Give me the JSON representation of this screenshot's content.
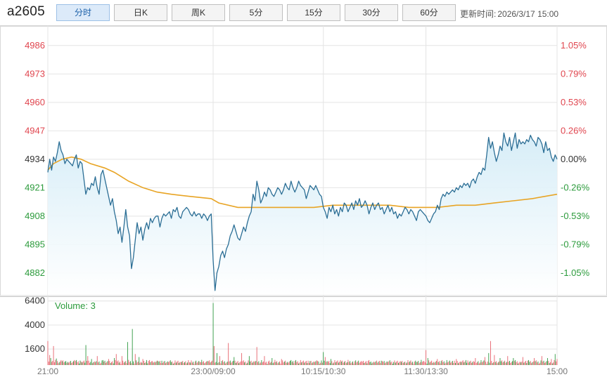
{
  "header": {
    "symbol": "a2605",
    "tabs": [
      {
        "label": "分时",
        "active": true
      },
      {
        "label": "日K",
        "active": false
      },
      {
        "label": "周K",
        "active": false
      },
      {
        "label": "5分",
        "active": false
      },
      {
        "label": "15分",
        "active": false
      },
      {
        "label": "30分",
        "active": false
      },
      {
        "label": "60分",
        "active": false
      }
    ],
    "update_label": "更新时间:",
    "update_time": "2026/3/17 15:00"
  },
  "colors": {
    "price_line": "#2b6e95",
    "avg_line": "#e8a424",
    "up": "#e0464f",
    "down": "#2c9b3c",
    "fill": "#e9f5fb",
    "grid": "#e4e4e4",
    "volume_up": "#e86a73",
    "volume_down": "#3b9f4c"
  },
  "chart_data": {
    "type": "line",
    "price_axis": {
      "ticks": [
        4986,
        4973,
        4960,
        4947,
        4934,
        4921,
        4908,
        4895,
        4882
      ],
      "ylim": [
        4872,
        4993
      ],
      "reference": 4934
    },
    "percent_axis": {
      "ticks": [
        "1.05%",
        "0.79%",
        "0.53%",
        "0.26%",
        "0.00%",
        "-0.26%",
        "-0.53%",
        "-0.79%",
        "-1.05%"
      ]
    },
    "time_axis": {
      "labels": [
        "21:00",
        "23:00/09:00",
        "10:15/10:30",
        "11:30/13:30",
        "15:00"
      ]
    },
    "price_series": [
      [
        0,
        4928
      ],
      [
        2,
        4934
      ],
      [
        4,
        4929
      ],
      [
        6,
        4935
      ],
      [
        8,
        4933
      ],
      [
        10,
        4937
      ],
      [
        12,
        4942
      ],
      [
        14,
        4938
      ],
      [
        16,
        4936
      ],
      [
        18,
        4932
      ],
      [
        20,
        4934
      ],
      [
        22,
        4933
      ],
      [
        24,
        4932
      ],
      [
        26,
        4931
      ],
      [
        28,
        4934
      ],
      [
        30,
        4936
      ],
      [
        32,
        4930
      ],
      [
        34,
        4933
      ],
      [
        36,
        4932
      ],
      [
        38,
        4925
      ],
      [
        40,
        4918
      ],
      [
        42,
        4921
      ],
      [
        44,
        4920
      ],
      [
        46,
        4923
      ],
      [
        48,
        4922
      ],
      [
        50,
        4926
      ],
      [
        52,
        4921
      ],
      [
        54,
        4918
      ],
      [
        56,
        4927
      ],
      [
        58,
        4929
      ],
      [
        60,
        4925
      ],
      [
        62,
        4921
      ],
      [
        64,
        4917
      ],
      [
        66,
        4913
      ],
      [
        68,
        4916
      ],
      [
        70,
        4910
      ],
      [
        72,
        4906
      ],
      [
        74,
        4900
      ],
      [
        76,
        4903
      ],
      [
        78,
        4896
      ],
      [
        80,
        4903
      ],
      [
        82,
        4911
      ],
      [
        84,
        4903
      ],
      [
        86,
        4899
      ],
      [
        88,
        4884
      ],
      [
        90,
        4889
      ],
      [
        92,
        4897
      ],
      [
        94,
        4905
      ],
      [
        96,
        4900
      ],
      [
        98,
        4903
      ],
      [
        100,
        4897
      ],
      [
        102,
        4902
      ],
      [
        104,
        4905
      ],
      [
        106,
        4902
      ],
      [
        108,
        4907
      ],
      [
        110,
        4905
      ],
      [
        112,
        4907
      ],
      [
        114,
        4908
      ],
      [
        116,
        4908
      ],
      [
        118,
        4903
      ],
      [
        120,
        4907
      ],
      [
        122,
        4909
      ],
      [
        124,
        4908
      ],
      [
        126,
        4909
      ],
      [
        128,
        4910
      ],
      [
        130,
        4907
      ],
      [
        132,
        4911
      ],
      [
        134,
        4910
      ],
      [
        136,
        4912
      ],
      [
        138,
        4908
      ],
      [
        140,
        4907
      ],
      [
        142,
        4910
      ],
      [
        144,
        4911
      ],
      [
        146,
        4912
      ],
      [
        148,
        4911
      ],
      [
        150,
        4909
      ],
      [
        152,
        4908
      ],
      [
        154,
        4910
      ],
      [
        156,
        4908
      ],
      [
        158,
        4909
      ],
      [
        160,
        4909
      ],
      [
        162,
        4907
      ],
      [
        164,
        4909
      ],
      [
        166,
        4908
      ],
      [
        168,
        4906
      ],
      [
        170,
        4908
      ],
      [
        172,
        4909
      ],
      [
        174,
        4888
      ],
      [
        176,
        4874
      ],
      [
        178,
        4882
      ],
      [
        180,
        4885
      ],
      [
        182,
        4890
      ],
      [
        184,
        4892
      ],
      [
        186,
        4889
      ],
      [
        188,
        4893
      ],
      [
        190,
        4895
      ],
      [
        192,
        4899
      ],
      [
        194,
        4901
      ],
      [
        196,
        4904
      ],
      [
        198,
        4901
      ],
      [
        200,
        4898
      ],
      [
        202,
        4897
      ],
      [
        204,
        4900
      ],
      [
        206,
        4903
      ],
      [
        208,
        4901
      ],
      [
        210,
        4905
      ],
      [
        212,
        4908
      ],
      [
        214,
        4910
      ],
      [
        216,
        4918
      ],
      [
        218,
        4915
      ],
      [
        220,
        4924
      ],
      [
        222,
        4920
      ],
      [
        224,
        4914
      ],
      [
        226,
        4916
      ],
      [
        228,
        4919
      ],
      [
        230,
        4917
      ],
      [
        232,
        4921
      ],
      [
        234,
        4920
      ],
      [
        236,
        4918
      ],
      [
        238,
        4917
      ],
      [
        240,
        4919
      ],
      [
        242,
        4921
      ],
      [
        244,
        4920
      ],
      [
        246,
        4918
      ],
      [
        248,
        4920
      ],
      [
        250,
        4923
      ],
      [
        252,
        4921
      ],
      [
        254,
        4920
      ],
      [
        256,
        4924
      ],
      [
        258,
        4921
      ],
      [
        260,
        4919
      ],
      [
        262,
        4921
      ],
      [
        264,
        4924
      ],
      [
        266,
        4922
      ],
      [
        268,
        4921
      ],
      [
        270,
        4920
      ],
      [
        272,
        4916
      ],
      [
        274,
        4919
      ],
      [
        276,
        4922
      ],
      [
        278,
        4921
      ],
      [
        280,
        4920
      ],
      [
        282,
        4922
      ],
      [
        284,
        4920
      ],
      [
        286,
        4918
      ],
      [
        288,
        4917
      ],
      [
        290,
        4912
      ],
      [
        292,
        4910
      ],
      [
        294,
        4907
      ],
      [
        296,
        4912
      ],
      [
        298,
        4910
      ],
      [
        300,
        4913
      ],
      [
        302,
        4909
      ],
      [
        304,
        4911
      ],
      [
        306,
        4908
      ],
      [
        308,
        4912
      ],
      [
        310,
        4910
      ],
      [
        312,
        4914
      ],
      [
        314,
        4913
      ],
      [
        316,
        4910
      ],
      [
        318,
        4912
      ],
      [
        320,
        4914
      ],
      [
        322,
        4911
      ],
      [
        324,
        4915
      ],
      [
        326,
        4913
      ],
      [
        328,
        4916
      ],
      [
        330,
        4912
      ],
      [
        332,
        4913
      ],
      [
        334,
        4915
      ],
      [
        336,
        4913
      ],
      [
        338,
        4909
      ],
      [
        340,
        4912
      ],
      [
        342,
        4914
      ],
      [
        344,
        4911
      ],
      [
        346,
        4913
      ],
      [
        348,
        4914
      ],
      [
        350,
        4911
      ],
      [
        352,
        4912
      ],
      [
        354,
        4909
      ],
      [
        356,
        4911
      ],
      [
        358,
        4913
      ],
      [
        360,
        4910
      ],
      [
        362,
        4912
      ],
      [
        364,
        4909
      ],
      [
        366,
        4910
      ],
      [
        368,
        4907
      ],
      [
        370,
        4909
      ],
      [
        372,
        4908
      ],
      [
        374,
        4910
      ],
      [
        376,
        4912
      ],
      [
        378,
        4911
      ],
      [
        380,
        4909
      ],
      [
        382,
        4911
      ],
      [
        384,
        4910
      ],
      [
        386,
        4908
      ],
      [
        388,
        4906
      ],
      [
        390,
        4910
      ],
      [
        392,
        4911
      ],
      [
        394,
        4910
      ],
      [
        396,
        4909
      ],
      [
        398,
        4908
      ],
      [
        400,
        4906
      ],
      [
        402,
        4905
      ],
      [
        404,
        4907
      ],
      [
        406,
        4909
      ],
      [
        408,
        4910
      ],
      [
        410,
        4913
      ],
      [
        412,
        4911
      ],
      [
        414,
        4916
      ],
      [
        416,
        4918
      ],
      [
        418,
        4917
      ],
      [
        420,
        4919
      ],
      [
        422,
        4918
      ],
      [
        424,
        4919
      ],
      [
        426,
        4920
      ],
      [
        428,
        4919
      ],
      [
        430,
        4921
      ],
      [
        432,
        4920
      ],
      [
        434,
        4922
      ],
      [
        436,
        4921
      ],
      [
        438,
        4923
      ],
      [
        440,
        4922
      ],
      [
        442,
        4923
      ],
      [
        444,
        4921
      ],
      [
        446,
        4924
      ],
      [
        448,
        4925
      ],
      [
        450,
        4923
      ],
      [
        452,
        4926
      ],
      [
        454,
        4928
      ],
      [
        456,
        4927
      ],
      [
        458,
        4930
      ],
      [
        460,
        4929
      ],
      [
        462,
        4936
      ],
      [
        464,
        4944
      ],
      [
        466,
        4939
      ],
      [
        468,
        4942
      ],
      [
        470,
        4937
      ],
      [
        472,
        4933
      ],
      [
        474,
        4936
      ],
      [
        476,
        4940
      ],
      [
        478,
        4938
      ],
      [
        480,
        4946
      ],
      [
        482,
        4942
      ],
      [
        484,
        4940
      ],
      [
        486,
        4944
      ],
      [
        488,
        4938
      ],
      [
        490,
        4942
      ],
      [
        492,
        4946
      ],
      [
        494,
        4939
      ],
      [
        496,
        4943
      ],
      [
        498,
        4941
      ],
      [
        500,
        4942
      ],
      [
        502,
        4941
      ],
      [
        504,
        4943
      ],
      [
        506,
        4942
      ],
      [
        508,
        4945
      ],
      [
        510,
        4943
      ],
      [
        512,
        4942
      ],
      [
        514,
        4940
      ],
      [
        516,
        4944
      ],
      [
        518,
        4943
      ],
      [
        520,
        4941
      ],
      [
        522,
        4937
      ],
      [
        524,
        4942
      ],
      [
        526,
        4938
      ],
      [
        528,
        4939
      ],
      [
        530,
        4935
      ],
      [
        532,
        4933
      ],
      [
        534,
        4936
      ],
      [
        536,
        4934
      ]
    ],
    "avg_series": [
      [
        0,
        4929
      ],
      [
        6,
        4932
      ],
      [
        15,
        4934
      ],
      [
        25,
        4935
      ],
      [
        35,
        4934
      ],
      [
        45,
        4932
      ],
      [
        60,
        4930
      ],
      [
        70,
        4928
      ],
      [
        85,
        4924
      ],
      [
        100,
        4921
      ],
      [
        115,
        4919
      ],
      [
        130,
        4918
      ],
      [
        150,
        4917
      ],
      [
        172,
        4916
      ],
      [
        180,
        4914
      ],
      [
        200,
        4912
      ],
      [
        220,
        4912
      ],
      [
        240,
        4912
      ],
      [
        260,
        4912
      ],
      [
        280,
        4912
      ],
      [
        300,
        4913
      ],
      [
        320,
        4913
      ],
      [
        340,
        4913
      ],
      [
        360,
        4913
      ],
      [
        380,
        4912
      ],
      [
        396,
        4912
      ],
      [
        410,
        4912
      ],
      [
        430,
        4913
      ],
      [
        450,
        4913
      ],
      [
        470,
        4914
      ],
      [
        490,
        4915
      ],
      [
        510,
        4916
      ],
      [
        536,
        4918
      ]
    ],
    "volume_axis": {
      "ticks": [
        6400,
        4000,
        1600
      ],
      "ylim": [
        0,
        6800
      ]
    },
    "volume_label": "Volume: 3",
    "volume_highlights": [
      [
        0,
        2400,
        "up"
      ],
      [
        2,
        1000,
        "up"
      ],
      [
        3,
        700,
        "down"
      ],
      [
        6,
        1900,
        "up"
      ],
      [
        9,
        650,
        "down"
      ],
      [
        14,
        500,
        "up"
      ],
      [
        19,
        400,
        "down"
      ],
      [
        28,
        500,
        "up"
      ],
      [
        34,
        450,
        "down"
      ],
      [
        40,
        2000,
        "down"
      ],
      [
        42,
        900,
        "up"
      ],
      [
        46,
        600,
        "down"
      ],
      [
        52,
        900,
        "up"
      ],
      [
        58,
        500,
        "down"
      ],
      [
        64,
        600,
        "up"
      ],
      [
        70,
        700,
        "down"
      ],
      [
        72,
        1100,
        "up"
      ],
      [
        78,
        900,
        "up"
      ],
      [
        84,
        2300,
        "down"
      ],
      [
        89,
        3600,
        "down"
      ],
      [
        92,
        1100,
        "up"
      ],
      [
        96,
        800,
        "down"
      ],
      [
        100,
        600,
        "up"
      ],
      [
        104,
        500,
        "down"
      ],
      [
        110,
        400,
        "up"
      ],
      [
        116,
        400,
        "down"
      ],
      [
        122,
        350,
        "up"
      ],
      [
        130,
        300,
        "down"
      ],
      [
        140,
        300,
        "up"
      ],
      [
        150,
        250,
        "down"
      ],
      [
        160,
        300,
        "up"
      ],
      [
        168,
        400,
        "down"
      ],
      [
        174,
        6200,
        "down"
      ],
      [
        175,
        1900,
        "up"
      ],
      [
        178,
        1200,
        "down"
      ],
      [
        181,
        900,
        "up"
      ],
      [
        190,
        2200,
        "up"
      ],
      [
        196,
        800,
        "down"
      ],
      [
        204,
        1200,
        "up"
      ],
      [
        212,
        900,
        "down"
      ],
      [
        220,
        1800,
        "up"
      ],
      [
        228,
        900,
        "up"
      ],
      [
        236,
        700,
        "down"
      ],
      [
        246,
        600,
        "up"
      ],
      [
        256,
        500,
        "down"
      ],
      [
        266,
        500,
        "up"
      ],
      [
        276,
        400,
        "down"
      ],
      [
        284,
        400,
        "up"
      ],
      [
        290,
        1300,
        "down"
      ],
      [
        292,
        800,
        "up"
      ],
      [
        298,
        600,
        "down"
      ],
      [
        308,
        500,
        "up"
      ],
      [
        318,
        400,
        "down"
      ],
      [
        330,
        400,
        "up"
      ],
      [
        340,
        350,
        "down"
      ],
      [
        352,
        400,
        "up"
      ],
      [
        364,
        300,
        "down"
      ],
      [
        376,
        350,
        "up"
      ],
      [
        388,
        300,
        "down"
      ],
      [
        396,
        400,
        "up"
      ],
      [
        398,
        1500,
        "up"
      ],
      [
        400,
        700,
        "down"
      ],
      [
        410,
        600,
        "up"
      ],
      [
        420,
        500,
        "down"
      ],
      [
        430,
        600,
        "up"
      ],
      [
        440,
        500,
        "down"
      ],
      [
        450,
        700,
        "up"
      ],
      [
        460,
        800,
        "up"
      ],
      [
        464,
        1200,
        "down"
      ],
      [
        466,
        2400,
        "up"
      ],
      [
        470,
        1000,
        "up"
      ],
      [
        476,
        700,
        "down"
      ],
      [
        484,
        900,
        "up"
      ],
      [
        490,
        700,
        "down"
      ],
      [
        500,
        800,
        "up"
      ],
      [
        506,
        500,
        "down"
      ],
      [
        512,
        700,
        "up"
      ],
      [
        520,
        900,
        "up"
      ],
      [
        526,
        700,
        "down"
      ],
      [
        530,
        600,
        "up"
      ],
      [
        534,
        1100,
        "down"
      ],
      [
        536,
        600,
        "up"
      ]
    ]
  }
}
